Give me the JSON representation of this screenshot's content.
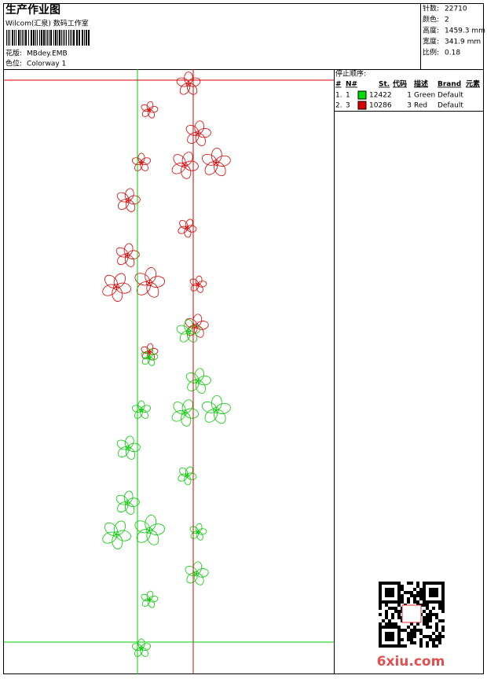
{
  "header": {
    "title": "生产作业图",
    "subtitle": "Wilcom(汇泉) 数码工作室",
    "pattern_label": "花版:",
    "pattern": "MBdey.EMB",
    "colorway_label": "色位:",
    "colorway": "Colorway 1"
  },
  "stats": [
    {
      "label": "针数:",
      "value": "22710"
    },
    {
      "label": "颜色:",
      "value": "2"
    },
    {
      "label": "高度:",
      "value": "1459.3 mm"
    },
    {
      "label": "宽度:",
      "value": "341.9 mm"
    },
    {
      "label": "比例:",
      "value": "0.18"
    }
  ],
  "stop_sequence": {
    "title": "停止顺序:",
    "columns": [
      "#",
      "N#",
      "St.",
      "代码",
      "描述",
      "Brand",
      "元素"
    ],
    "rows": [
      {
        "index": "1.",
        "needle": "1",
        "color": "#00dd00",
        "stitches": "12422",
        "code": "1",
        "description": "Green",
        "brand": "Default"
      },
      {
        "index": "2.",
        "needle": "3",
        "color": "#dd0000",
        "stitches": "10286",
        "code": "3",
        "description": "Red",
        "brand": "Default"
      }
    ]
  },
  "watermark": "6xiu.com"
}
